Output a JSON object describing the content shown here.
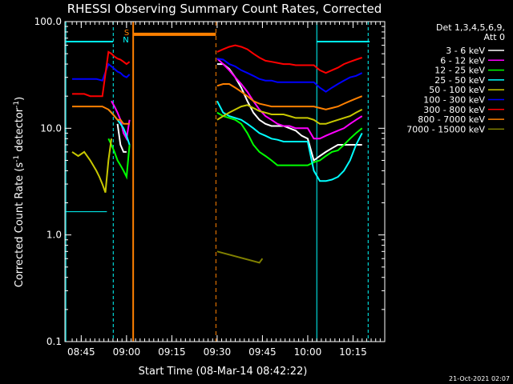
{
  "chart_data": {
    "type": "line",
    "title": "RHESSI Observing Summary Count Rates, Corrected",
    "xlabel": "Start Time (08-Mar-14 08:42:22)",
    "ylabel_main": "Corrected Count Rate (s",
    "ylabel_sup1": "-1",
    "ylabel_mid": " detector",
    "ylabel_sup2": "-1",
    "ylabel_end": ")",
    "y_scale": "log",
    "ylim": [
      0.1,
      100.0
    ],
    "xlim_minutes": [
      -2.4,
      103.5
    ],
    "y_ticks": [
      {
        "v": 100,
        "label": "100.0"
      },
      {
        "v": 10,
        "label": "10.0"
      },
      {
        "v": 1,
        "label": "1.0"
      },
      {
        "v": 0.1,
        "label": "0.1"
      }
    ],
    "x_ticks": [
      {
        "m": 3,
        "label": "08:45"
      },
      {
        "m": 18,
        "label": "09:00"
      },
      {
        "m": 33,
        "label": "09:15"
      },
      {
        "m": 48,
        "label": "09:30"
      },
      {
        "m": 63,
        "label": "09:45"
      },
      {
        "m": 78,
        "label": "10:00"
      },
      {
        "m": 93,
        "label": "10:15"
      }
    ],
    "legend_header": [
      "Det 1,3,4,5,6,9,",
      "Att 0"
    ],
    "legend_placement": "right, outside plot",
    "annotations": [
      "S",
      "N"
    ],
    "footer_date": "21-Oct-2021 02:07",
    "series": [
      {
        "name": "3 - 6 keV",
        "color": "#ffffff",
        "x": [
          0,
          12,
          13,
          14,
          15,
          16,
          17,
          18,
          19,
          20,
          47.5,
          48,
          50,
          52,
          54,
          56,
          58,
          60,
          62,
          64,
          66,
          68,
          70,
          72,
          74,
          76,
          78,
          80,
          82,
          84,
          86,
          88,
          90,
          92,
          94,
          96
        ],
        "y": [
          null,
          null,
          null,
          null,
          11,
          7,
          6,
          6,
          null,
          null,
          null,
          40,
          40,
          36,
          30,
          24,
          18,
          14,
          12,
          11,
          10.5,
          10.5,
          10.5,
          10,
          9.5,
          8.5,
          8,
          5,
          5.5,
          6,
          6.5,
          7,
          7,
          7,
          7,
          7
        ]
      },
      {
        "name": "6 - 12 keV",
        "color": "#ff00ff",
        "x": [
          12,
          13,
          14,
          15,
          16,
          17,
          18,
          19,
          20,
          47.5,
          48,
          50,
          52,
          54,
          56,
          58,
          60,
          62,
          64,
          66,
          68,
          70,
          72,
          74,
          76,
          78,
          80,
          82,
          84,
          86,
          88,
          90,
          92,
          94,
          96
        ],
        "y": [
          null,
          18,
          16,
          14,
          12,
          9,
          8,
          12,
          null,
          null,
          45,
          40,
          35,
          30,
          26,
          22,
          18,
          15,
          13,
          12,
          11,
          10.5,
          10.5,
          10,
          10,
          10,
          8,
          8,
          8.5,
          9,
          9.5,
          10,
          11,
          12,
          13
        ]
      },
      {
        "name": "12 - 25 keV",
        "color": "#00ff00",
        "x": [
          0,
          11,
          12,
          13,
          14,
          15,
          16,
          17,
          18,
          19,
          20,
          47.5,
          48,
          50,
          52,
          54,
          56,
          58,
          60,
          62,
          64,
          66,
          68,
          70,
          72,
          74,
          76,
          78,
          80,
          82,
          84,
          86,
          88,
          90,
          92,
          94,
          96
        ],
        "y": [
          null,
          null,
          8,
          7,
          6,
          5,
          4.5,
          4,
          3.5,
          7,
          null,
          null,
          14,
          13,
          12.5,
          12,
          11,
          9,
          7,
          6,
          5.5,
          5,
          4.5,
          4.5,
          4.5,
          4.5,
          4.5,
          4.5,
          4.8,
          5,
          5.5,
          6,
          6.2,
          7,
          8,
          9,
          10
        ]
      },
      {
        "name": "25 - 50 keV",
        "color": "#00ffff",
        "x": [
          0,
          12,
          13,
          14,
          15,
          16,
          17,
          18,
          19,
          20,
          47.5,
          48,
          50,
          52,
          54,
          56,
          58,
          60,
          62,
          64,
          66,
          68,
          70,
          72,
          74,
          76,
          78,
          80,
          82,
          84,
          86,
          88,
          90,
          92,
          94,
          96
        ],
        "y": [
          null,
          15,
          14,
          13,
          12,
          11,
          10,
          8.5,
          7,
          null,
          null,
          18,
          14,
          13,
          12.5,
          12,
          11,
          10,
          9,
          8.5,
          8,
          7.8,
          7.5,
          7.5,
          7.5,
          7.5,
          7.5,
          4,
          3.2,
          3.2,
          3.3,
          3.5,
          4,
          5,
          7,
          9
        ]
      },
      {
        "name": "50 - 100 keV",
        "color": "#c8c800",
        "x": [
          0,
          2,
          4,
          6,
          8,
          9,
          10,
          11,
          12,
          13,
          14,
          15,
          16,
          17,
          18,
          19,
          20,
          47.5,
          48,
          50,
          52,
          54,
          56,
          58,
          60,
          62,
          64,
          66,
          68,
          70,
          72,
          74,
          76,
          78,
          80,
          82,
          84,
          86,
          88,
          90,
          92,
          94,
          96
        ],
        "y": [
          6,
          5.5,
          6,
          5,
          4,
          3.5,
          3,
          2.5,
          5,
          8,
          null,
          null,
          null,
          null,
          null,
          null,
          null,
          null,
          12,
          13,
          14,
          15,
          16,
          16.5,
          15.5,
          14.5,
          14,
          13.5,
          13.5,
          13.5,
          13,
          12.5,
          12.5,
          12.5,
          12,
          11,
          11,
          11.5,
          12,
          12.5,
          13,
          14,
          15
        ]
      },
      {
        "name": "100 - 300 keV",
        "color": "#0000ff",
        "x": [
          0,
          2,
          4,
          6,
          8,
          10,
          12,
          13,
          14,
          15,
          16,
          17,
          18,
          19,
          20,
          47.5,
          48,
          50,
          52,
          54,
          56,
          58,
          60,
          62,
          64,
          66,
          68,
          70,
          72,
          74,
          76,
          78,
          80,
          82,
          84,
          86,
          88,
          90,
          92,
          94,
          96
        ],
        "y": [
          29,
          29,
          29,
          29,
          29,
          28,
          40,
          38,
          36,
          34,
          33,
          31,
          30,
          32,
          null,
          null,
          45,
          44,
          40,
          38,
          35,
          33,
          31,
          29,
          28,
          28,
          27,
          27,
          27,
          27,
          27,
          27,
          27,
          24,
          22,
          24,
          26,
          28,
          30,
          31,
          33
        ]
      },
      {
        "name": "300 - 800 keV",
        "color": "#ff0000",
        "x": [
          0,
          2,
          4,
          6,
          8,
          10,
          12,
          13,
          14,
          15,
          16,
          17,
          18,
          19,
          20,
          47.5,
          48,
          50,
          52,
          54,
          56,
          58,
          60,
          62,
          64,
          66,
          68,
          70,
          72,
          74,
          76,
          78,
          80,
          82,
          84,
          86,
          88,
          90,
          92,
          94,
          96
        ],
        "y": [
          21,
          21,
          21,
          20,
          20,
          20,
          52,
          50,
          47,
          45,
          44,
          42,
          40,
          42,
          null,
          null,
          52,
          55,
          58,
          60,
          58,
          55,
          50,
          46,
          43,
          42,
          41,
          40,
          40,
          39,
          39,
          39,
          39,
          35,
          33,
          35,
          37,
          40,
          42,
          44,
          46
        ]
      },
      {
        "name": "800 - 7000 keV",
        "color": "#ff8000",
        "x": [
          0,
          2,
          4,
          6,
          8,
          10,
          12,
          13,
          14,
          15,
          16,
          17,
          18,
          19,
          20,
          47.5,
          48,
          50,
          52,
          54,
          56,
          58,
          60,
          62,
          64,
          66,
          68,
          70,
          72,
          74,
          76,
          78,
          80,
          82,
          84,
          86,
          88,
          90,
          92,
          94,
          96
        ],
        "y": [
          16,
          16,
          16,
          16,
          16,
          16,
          15,
          14,
          13,
          12,
          12,
          11,
          11,
          11,
          null,
          null,
          25,
          26,
          26,
          24,
          22,
          20,
          18,
          17,
          16.5,
          16,
          16,
          16,
          16,
          16,
          16,
          16,
          16,
          15.5,
          15,
          15.5,
          16,
          17,
          18,
          19,
          20
        ]
      },
      {
        "name": "7000 - 15000 keV",
        "color": "#808000",
        "x": [
          47.5,
          48,
          62,
          63,
          64
        ],
        "y": [
          null,
          0.7,
          0.55,
          0.6,
          null
        ]
      }
    ]
  }
}
